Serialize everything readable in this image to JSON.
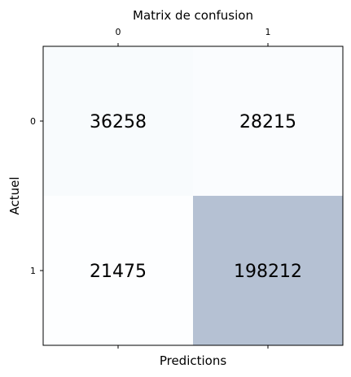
{
  "chart_data": {
    "type": "heatmap",
    "title": "Matrix de confusion",
    "xlabel": "Predictions",
    "ylabel": "Actuel",
    "x_categories": [
      "0",
      "1"
    ],
    "y_categories": [
      "0",
      "1"
    ],
    "values": [
      [
        36258,
        28215
      ],
      [
        21475,
        198212
      ]
    ],
    "cell_labels": [
      [
        "36258",
        "28215"
      ],
      [
        "21475",
        "198212"
      ]
    ],
    "colormap": "Blues",
    "alpha": 0.3,
    "x_axis_position": "top",
    "grid": false
  }
}
